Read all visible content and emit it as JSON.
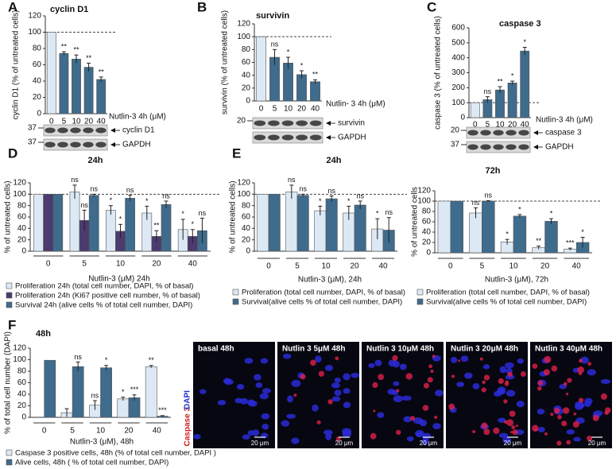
{
  "chart_data": [
    {
      "type": "bar",
      "panel": "A",
      "title": "cyclin D1",
      "y_label": "cyclin D1 (% of untreated cells)",
      "x_label": "Nutlin-3 4h (μM)",
      "categories": [
        "0",
        "5",
        "10",
        "20",
        "40"
      ],
      "series": [
        {
          "colors": [
            "#dce9f5",
            "#3f6b8c",
            "#3f6b8c",
            "#3f6b8c",
            "#3f6b8c"
          ],
          "values": [
            100,
            74,
            67,
            57,
            42
          ],
          "errors": [
            0,
            2,
            5,
            5,
            3
          ],
          "annotations": [
            null,
            "**",
            "**",
            "**",
            "**"
          ]
        }
      ],
      "ylim": [
        0,
        120
      ],
      "yticks": [
        0,
        20,
        40,
        60,
        80,
        100,
        120
      ],
      "reference_line": 100,
      "blot": [
        {
          "size": "37",
          "label": "cyclin D1"
        },
        {
          "size": "37",
          "label": "GAPDH"
        }
      ]
    },
    {
      "type": "bar",
      "panel": "B",
      "title": "survivin",
      "y_label": "survivin (% of untreated cells)",
      "x_label": "Nutlin- 3 4h (μM)",
      "categories": [
        "0",
        "5",
        "10",
        "20",
        "40"
      ],
      "series": [
        {
          "colors": [
            "#dce9f5",
            "#3f6b8c",
            "#3f6b8c",
            "#3f6b8c",
            "#3f6b8c"
          ],
          "values": [
            100,
            68,
            59,
            41,
            30
          ],
          "errors": [
            0,
            12,
            9,
            6,
            3
          ],
          "annotations": [
            null,
            "ns",
            "*",
            "*",
            "**"
          ]
        }
      ],
      "ylim": [
        0,
        120
      ],
      "yticks": [
        0,
        20,
        40,
        60,
        80,
        100,
        120
      ],
      "reference_line": 100,
      "blot": [
        {
          "size": "20",
          "label": "survivin"
        },
        {
          "size": null,
          "label": "GAPDH"
        }
      ]
    },
    {
      "type": "bar",
      "panel": "C",
      "title": "caspase 3",
      "y_label": "caspase 3  (% of untreated cells)",
      "x_label": "Nutlin-3 4h (μM)",
      "categories": [
        "0",
        "5",
        "10",
        "20",
        "40"
      ],
      "series": [
        {
          "colors": [
            "#dce9f5",
            "#3f6b8c",
            "#3f6b8c",
            "#3f6b8c",
            "#3f6b8c"
          ],
          "values": [
            100,
            120,
            185,
            232,
            445
          ],
          "errors": [
            0,
            20,
            22,
            12,
            25
          ],
          "annotations": [
            null,
            "ns",
            "**",
            "*",
            "*"
          ]
        }
      ],
      "ylim": [
        0,
        600
      ],
      "yticks": [
        0,
        100,
        200,
        300,
        400,
        500,
        600
      ],
      "reference_line": 100,
      "blot": [
        {
          "size": "20",
          "label": "caspase 3"
        },
        {
          "size": "37",
          "label": "GAPDH"
        }
      ]
    },
    {
      "type": "bar",
      "panel": "D",
      "title": "24h",
      "y_label": "% of untreated cells)",
      "x_label": "Nutlin-3 (μM) 24h",
      "categories": [
        "0",
        "5",
        "10",
        "20",
        "40"
      ],
      "series": [
        {
          "name": "Proliferation 24h (total cell number, DAPI, % of basal)",
          "color": "#dce9f5",
          "values": [
            100,
            104,
            72,
            67,
            38
          ],
          "errors": [
            0,
            12,
            8,
            12,
            18
          ],
          "annotations": [
            null,
            "ns",
            "*",
            "*",
            "*"
          ]
        },
        {
          "name": "Proliferation 24h (Ki67 positive cell number, % of basal)",
          "color": "#4b3b6e",
          "values": [
            100,
            54,
            35,
            26,
            26
          ],
          "errors": [
            0,
            18,
            12,
            10,
            12
          ],
          "annotations": [
            null,
            "ns",
            "*",
            "**",
            "*"
          ]
        },
        {
          "name": "Survival 24h (alive cells  % of total cell number, DAPI)",
          "color": "#3f6b8c",
          "values": [
            100,
            98,
            93,
            82,
            36
          ],
          "errors": [
            0,
            2,
            5,
            6,
            22
          ],
          "annotations": [
            null,
            "ns",
            "ns",
            "ns",
            "ns"
          ]
        }
      ],
      "ylim": [
        0,
        120
      ],
      "yticks": [
        0,
        20,
        40,
        60,
        80,
        100,
        120
      ],
      "reference_line": 100
    },
    {
      "type": "bar",
      "panel": "E",
      "title": "24h",
      "y_label": "% of untreated cells)",
      "x_label": "Nutlin-3 (μM), 24h",
      "categories": [
        "0",
        "5",
        "10",
        "20",
        "40"
      ],
      "series": [
        {
          "name": "Proliferation (total cell number, DAPI, % of basal)",
          "color": "#dce9f5",
          "values": [
            100,
            104,
            71,
            67,
            39
          ],
          "errors": [
            0,
            12,
            8,
            12,
            18
          ],
          "annotations": [
            null,
            "ns",
            "*",
            "*",
            "*"
          ]
        },
        {
          "name": "Survival(alive cells % of total cell number, DAPI)",
          "color": "#3f6b8c",
          "values": [
            100,
            98,
            92,
            81,
            37
          ],
          "errors": [
            0,
            2,
            5,
            7,
            22
          ],
          "annotations": [
            null,
            "ns",
            "ns",
            "ns",
            "ns"
          ]
        }
      ],
      "ylim": [
        0,
        120
      ],
      "yticks": [
        0,
        20,
        40,
        60,
        80,
        100,
        120
      ],
      "reference_line": 100
    },
    {
      "type": "bar",
      "title": "72h",
      "y_label": "% of untreated cells",
      "x_label": "Nutlin-3 (μM), 72h",
      "categories": [
        "0",
        "5",
        "10",
        "20",
        "40"
      ],
      "series": [
        {
          "name": "Proliferation (total cell number, DAPI, % of basal)",
          "color": "#dce9f5",
          "values": [
            100,
            77,
            21,
            10,
            7
          ],
          "errors": [
            0,
            10,
            5,
            3,
            2
          ],
          "annotations": [
            null,
            "ns",
            "*",
            "**",
            "***"
          ]
        },
        {
          "name": "Survival(alive cells % of total cell number, DAPI)",
          "color": "#3f6b8c",
          "values": [
            100,
            100,
            71,
            61,
            20
          ],
          "errors": [
            0,
            1,
            3,
            5,
            10
          ],
          "annotations": [
            null,
            "ns",
            "*",
            "*",
            "*"
          ]
        }
      ],
      "ylim": [
        0,
        120
      ],
      "yticks": [
        0,
        20,
        40,
        60,
        80,
        100,
        120
      ],
      "reference_line": 100
    },
    {
      "type": "bar",
      "panel": "F",
      "title": "48h",
      "y_label": "% of total cell number (DAPI)",
      "x_label": "Nutlin-3 (μM), 48h",
      "categories": [
        "0",
        "5",
        "10",
        "20",
        "40"
      ],
      "series": [
        {
          "name": "Caspase 3 positive cells, 48h (% of  total cell number, DAPI )",
          "color": "#dce9f5",
          "values": [
            0,
            8,
            21,
            32,
            88
          ],
          "errors": [
            0,
            7,
            8,
            3,
            2
          ],
          "annotations": [
            null,
            null,
            "ns",
            "*",
            "**"
          ]
        },
        {
          "name": "Alive cells, 48h ( % of total cell number, DAPI)",
          "color": "#3f6b8c",
          "values": [
            99,
            88,
            86,
            34,
            2
          ],
          "errors": [
            0,
            8,
            4,
            5,
            1
          ],
          "annotations": [
            null,
            "ns",
            "*",
            "***",
            "***"
          ]
        }
      ],
      "ylim": [
        0,
        120
      ],
      "yticks": [
        0,
        20,
        40,
        60,
        80,
        100,
        120
      ]
    }
  ],
  "micrographs": {
    "stain_labels": [
      "Caspase 3",
      "DAPI"
    ],
    "images": [
      {
        "label": "basal 48h",
        "scale_bar": "20 μm"
      },
      {
        "label": "Nutlin 3 5μM 48h",
        "scale_bar": "20 μm"
      },
      {
        "label": "Nutlin 3 10μM 48h",
        "scale_bar": "20 μm"
      },
      {
        "label": "Nutlin 3 20μM 48h",
        "scale_bar": "20 μm"
      },
      {
        "label": "Nutlin 3 40μM 48h",
        "scale_bar": "20 μm"
      }
    ]
  }
}
